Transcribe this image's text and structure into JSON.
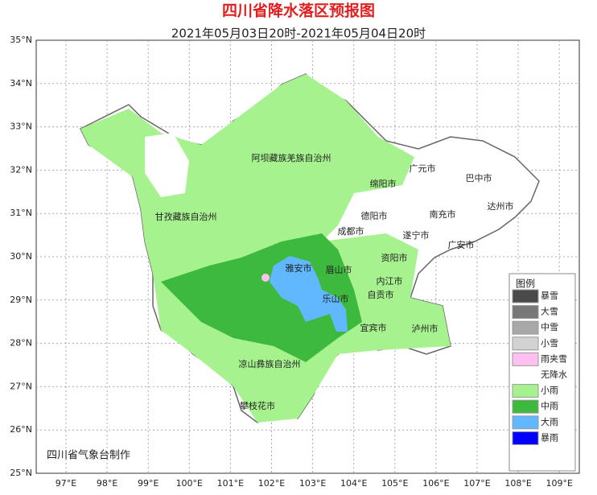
{
  "header": {
    "title": "四川省降水落区预报图",
    "subtitle": "2021年05月03日20时-2021年05月04日20时"
  },
  "latitudes": [
    "35°N",
    "34°N",
    "33°N",
    "32°N",
    "31°N",
    "30°N",
    "29°N",
    "28°N",
    "27°N",
    "26°N",
    "25°N"
  ],
  "longitudes": [
    "97°E",
    "98°E",
    "99°E",
    "100°E",
    "101°E",
    "102°E",
    "103°E",
    "104°E",
    "105°E",
    "106°E",
    "107°E",
    "108°E",
    "109°E"
  ],
  "places": [
    "阿坝藏族羌族自治州",
    "广元市",
    "巴中市",
    "绵阳市",
    "达州市",
    "甘孜藏族自治州",
    "德阳市",
    "南充市",
    "成都市",
    "遂宁市",
    "广安市",
    "雅安市",
    "眉山市",
    "资阳市",
    "内江市",
    "乐山市",
    "自贡市",
    "宜宾市",
    "泸州市",
    "凉山彝族自治州",
    "攀枝花市"
  ],
  "legend": {
    "title": "图例",
    "items": [
      {
        "name": "暴雪",
        "color": "#4a4a4a"
      },
      {
        "name": "大雪",
        "color": "#787878"
      },
      {
        "name": "中雪",
        "color": "#a8a8a8"
      },
      {
        "name": "小雪",
        "color": "#d2d2d2"
      },
      {
        "name": "雨夹雪",
        "color": "#ffc0ef"
      },
      {
        "name": "无降水",
        "color": "#ffffff"
      },
      {
        "name": "小雨",
        "color": "#a6f28f"
      },
      {
        "name": "中雨",
        "color": "#3dba3d"
      },
      {
        "name": "大雨",
        "color": "#61b8ff"
      },
      {
        "name": "暴雨",
        "color": "#0000fe"
      }
    ]
  },
  "footer": "四川省气象台制作"
}
